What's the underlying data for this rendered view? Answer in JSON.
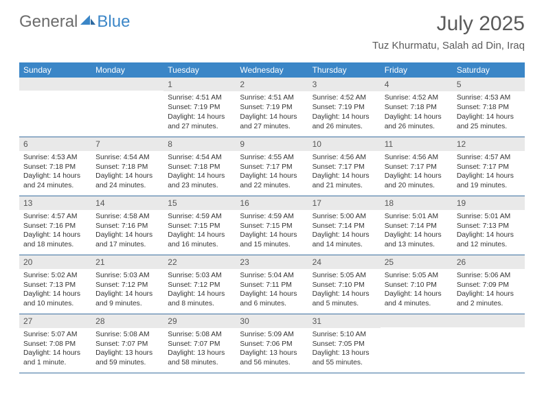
{
  "brand": {
    "part1": "General",
    "part2": "Blue"
  },
  "title": "July 2025",
  "location": "Tuz Khurmatu, Salah ad Din, Iraq",
  "colors": {
    "header_bg": "#3b86c7",
    "header_text": "#ffffff",
    "daynum_bg": "#e9e9e9",
    "daynum_text": "#555555",
    "body_text": "#333333",
    "rule": "#3b6fa0",
    "page_bg": "#ffffff",
    "logo_gray": "#6b6b6b",
    "logo_blue": "#3b86c7"
  },
  "days_of_week": [
    "Sunday",
    "Monday",
    "Tuesday",
    "Wednesday",
    "Thursday",
    "Friday",
    "Saturday"
  ],
  "weeks": [
    [
      null,
      null,
      {
        "n": "1",
        "sr": "Sunrise: 4:51 AM",
        "ss": "Sunset: 7:19 PM",
        "dl": "Daylight: 14 hours and 27 minutes."
      },
      {
        "n": "2",
        "sr": "Sunrise: 4:51 AM",
        "ss": "Sunset: 7:19 PM",
        "dl": "Daylight: 14 hours and 27 minutes."
      },
      {
        "n": "3",
        "sr": "Sunrise: 4:52 AM",
        "ss": "Sunset: 7:19 PM",
        "dl": "Daylight: 14 hours and 26 minutes."
      },
      {
        "n": "4",
        "sr": "Sunrise: 4:52 AM",
        "ss": "Sunset: 7:18 PM",
        "dl": "Daylight: 14 hours and 26 minutes."
      },
      {
        "n": "5",
        "sr": "Sunrise: 4:53 AM",
        "ss": "Sunset: 7:18 PM",
        "dl": "Daylight: 14 hours and 25 minutes."
      }
    ],
    [
      {
        "n": "6",
        "sr": "Sunrise: 4:53 AM",
        "ss": "Sunset: 7:18 PM",
        "dl": "Daylight: 14 hours and 24 minutes."
      },
      {
        "n": "7",
        "sr": "Sunrise: 4:54 AM",
        "ss": "Sunset: 7:18 PM",
        "dl": "Daylight: 14 hours and 24 minutes."
      },
      {
        "n": "8",
        "sr": "Sunrise: 4:54 AM",
        "ss": "Sunset: 7:18 PM",
        "dl": "Daylight: 14 hours and 23 minutes."
      },
      {
        "n": "9",
        "sr": "Sunrise: 4:55 AM",
        "ss": "Sunset: 7:17 PM",
        "dl": "Daylight: 14 hours and 22 minutes."
      },
      {
        "n": "10",
        "sr": "Sunrise: 4:56 AM",
        "ss": "Sunset: 7:17 PM",
        "dl": "Daylight: 14 hours and 21 minutes."
      },
      {
        "n": "11",
        "sr": "Sunrise: 4:56 AM",
        "ss": "Sunset: 7:17 PM",
        "dl": "Daylight: 14 hours and 20 minutes."
      },
      {
        "n": "12",
        "sr": "Sunrise: 4:57 AM",
        "ss": "Sunset: 7:17 PM",
        "dl": "Daylight: 14 hours and 19 minutes."
      }
    ],
    [
      {
        "n": "13",
        "sr": "Sunrise: 4:57 AM",
        "ss": "Sunset: 7:16 PM",
        "dl": "Daylight: 14 hours and 18 minutes."
      },
      {
        "n": "14",
        "sr": "Sunrise: 4:58 AM",
        "ss": "Sunset: 7:16 PM",
        "dl": "Daylight: 14 hours and 17 minutes."
      },
      {
        "n": "15",
        "sr": "Sunrise: 4:59 AM",
        "ss": "Sunset: 7:15 PM",
        "dl": "Daylight: 14 hours and 16 minutes."
      },
      {
        "n": "16",
        "sr": "Sunrise: 4:59 AM",
        "ss": "Sunset: 7:15 PM",
        "dl": "Daylight: 14 hours and 15 minutes."
      },
      {
        "n": "17",
        "sr": "Sunrise: 5:00 AM",
        "ss": "Sunset: 7:14 PM",
        "dl": "Daylight: 14 hours and 14 minutes."
      },
      {
        "n": "18",
        "sr": "Sunrise: 5:01 AM",
        "ss": "Sunset: 7:14 PM",
        "dl": "Daylight: 14 hours and 13 minutes."
      },
      {
        "n": "19",
        "sr": "Sunrise: 5:01 AM",
        "ss": "Sunset: 7:13 PM",
        "dl": "Daylight: 14 hours and 12 minutes."
      }
    ],
    [
      {
        "n": "20",
        "sr": "Sunrise: 5:02 AM",
        "ss": "Sunset: 7:13 PM",
        "dl": "Daylight: 14 hours and 10 minutes."
      },
      {
        "n": "21",
        "sr": "Sunrise: 5:03 AM",
        "ss": "Sunset: 7:12 PM",
        "dl": "Daylight: 14 hours and 9 minutes."
      },
      {
        "n": "22",
        "sr": "Sunrise: 5:03 AM",
        "ss": "Sunset: 7:12 PM",
        "dl": "Daylight: 14 hours and 8 minutes."
      },
      {
        "n": "23",
        "sr": "Sunrise: 5:04 AM",
        "ss": "Sunset: 7:11 PM",
        "dl": "Daylight: 14 hours and 6 minutes."
      },
      {
        "n": "24",
        "sr": "Sunrise: 5:05 AM",
        "ss": "Sunset: 7:10 PM",
        "dl": "Daylight: 14 hours and 5 minutes."
      },
      {
        "n": "25",
        "sr": "Sunrise: 5:05 AM",
        "ss": "Sunset: 7:10 PM",
        "dl": "Daylight: 14 hours and 4 minutes."
      },
      {
        "n": "26",
        "sr": "Sunrise: 5:06 AM",
        "ss": "Sunset: 7:09 PM",
        "dl": "Daylight: 14 hours and 2 minutes."
      }
    ],
    [
      {
        "n": "27",
        "sr": "Sunrise: 5:07 AM",
        "ss": "Sunset: 7:08 PM",
        "dl": "Daylight: 14 hours and 1 minute."
      },
      {
        "n": "28",
        "sr": "Sunrise: 5:08 AM",
        "ss": "Sunset: 7:07 PM",
        "dl": "Daylight: 13 hours and 59 minutes."
      },
      {
        "n": "29",
        "sr": "Sunrise: 5:08 AM",
        "ss": "Sunset: 7:07 PM",
        "dl": "Daylight: 13 hours and 58 minutes."
      },
      {
        "n": "30",
        "sr": "Sunrise: 5:09 AM",
        "ss": "Sunset: 7:06 PM",
        "dl": "Daylight: 13 hours and 56 minutes."
      },
      {
        "n": "31",
        "sr": "Sunrise: 5:10 AM",
        "ss": "Sunset: 7:05 PM",
        "dl": "Daylight: 13 hours and 55 minutes."
      },
      null,
      null
    ]
  ]
}
